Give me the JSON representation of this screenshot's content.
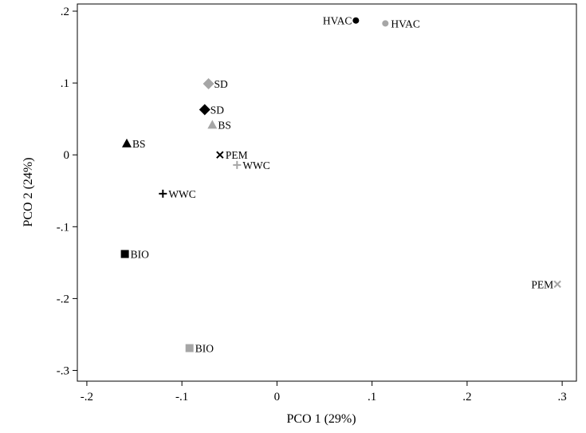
{
  "chart_data": {
    "type": "scatter",
    "title": "",
    "xlabel": "PCO 1 (29%)",
    "ylabel": "PCO 2 (24%)",
    "xlim": [
      -0.21,
      0.315
    ],
    "ylim": [
      -0.315,
      0.21
    ],
    "xticks": [
      -0.2,
      -0.1,
      0,
      0.1,
      0.2,
      0.3
    ],
    "xtick_labels": [
      "-.2",
      "-.1",
      "0",
      ".1",
      ".2",
      ".3"
    ],
    "yticks": [
      -0.3,
      -0.2,
      -0.1,
      0,
      0.1,
      0.2
    ],
    "ytick_labels": [
      "-.3",
      "-.2",
      "-.1",
      "0",
      ".1",
      ".2"
    ],
    "grid": false,
    "legend": "none",
    "colors": {
      "black": "#000000",
      "gray": "#a6a6a6"
    },
    "points": [
      {
        "label": "HVAC",
        "x": 0.083,
        "y": 0.187,
        "marker": "circle",
        "color": "black",
        "label_side": "left"
      },
      {
        "label": "HVAC",
        "x": 0.114,
        "y": 0.183,
        "marker": "circle",
        "color": "gray",
        "label_side": "right"
      },
      {
        "label": "SD",
        "x": -0.072,
        "y": 0.099,
        "marker": "diamond",
        "color": "gray",
        "label_side": "right"
      },
      {
        "label": "SD",
        "x": -0.076,
        "y": 0.063,
        "marker": "diamond",
        "color": "black",
        "label_side": "right"
      },
      {
        "label": "BS",
        "x": -0.068,
        "y": 0.042,
        "marker": "triangle",
        "color": "gray",
        "label_side": "right"
      },
      {
        "label": "BS",
        "x": -0.158,
        "y": 0.016,
        "marker": "triangle",
        "color": "black",
        "label_side": "right"
      },
      {
        "label": "PEM",
        "x": -0.06,
        "y": 0.0,
        "marker": "x",
        "color": "black",
        "label_side": "right"
      },
      {
        "label": "WWC",
        "x": -0.042,
        "y": -0.014,
        "marker": "plus",
        "color": "gray",
        "label_side": "right"
      },
      {
        "label": "WWC",
        "x": -0.12,
        "y": -0.054,
        "marker": "plus",
        "color": "black",
        "label_side": "right"
      },
      {
        "label": "BIO",
        "x": -0.16,
        "y": -0.138,
        "marker": "square",
        "color": "black",
        "label_side": "right"
      },
      {
        "label": "PEM",
        "x": 0.295,
        "y": -0.18,
        "marker": "x",
        "color": "gray",
        "label_side": "left"
      },
      {
        "label": "BIO",
        "x": -0.092,
        "y": -0.269,
        "marker": "square",
        "color": "gray",
        "label_side": "right"
      }
    ]
  }
}
